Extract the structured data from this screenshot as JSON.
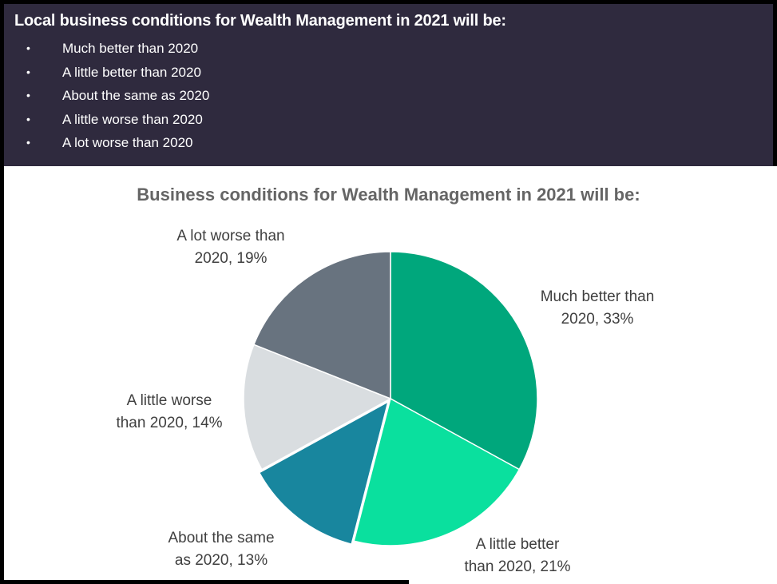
{
  "header": {
    "title": "Local business conditions for Wealth Management in 2021 will be:",
    "bullet_char": "•",
    "bullets": [
      "Much better than 2020",
      "A little better than 2020",
      "About the same as 2020",
      "A little worse than 2020",
      "A lot worse than 2020"
    ],
    "background_color": "#2F2A3E",
    "text_color": "#FFFFFF"
  },
  "chart": {
    "title": "Business conditions for Wealth Management in 2021 will be:",
    "title_color": "#656565",
    "label_color": "#404040",
    "labels": [
      {
        "line1": "Much better than",
        "line2": "2020, 33%"
      },
      {
        "line1": "A little better",
        "line2": "than 2020, 21%"
      },
      {
        "line1": "About the same",
        "line2": "as 2020, 13%"
      },
      {
        "line1": "A little worse",
        "line2": "than 2020, 14%"
      },
      {
        "line1": "A lot worse than",
        "line2": "2020, 19%"
      }
    ]
  },
  "chart_data": {
    "type": "pie",
    "title": "Business conditions for Wealth Management in 2021 will be:",
    "categories": [
      "Much better than 2020",
      "A little better than 2020",
      "About the same as 2020",
      "A little worse than 2020",
      "A lot worse than 2020"
    ],
    "values": [
      33,
      21,
      13,
      14,
      19
    ],
    "unit": "%",
    "colors": [
      "#00A77C",
      "#0AE09E",
      "#18869E",
      "#D9DDE0",
      "#68737F"
    ],
    "start_angle_deg": 0,
    "direction": "clockwise",
    "exploded_slice": "About the same as 2020",
    "legend": "none",
    "data_labels": "category-and-percent"
  }
}
